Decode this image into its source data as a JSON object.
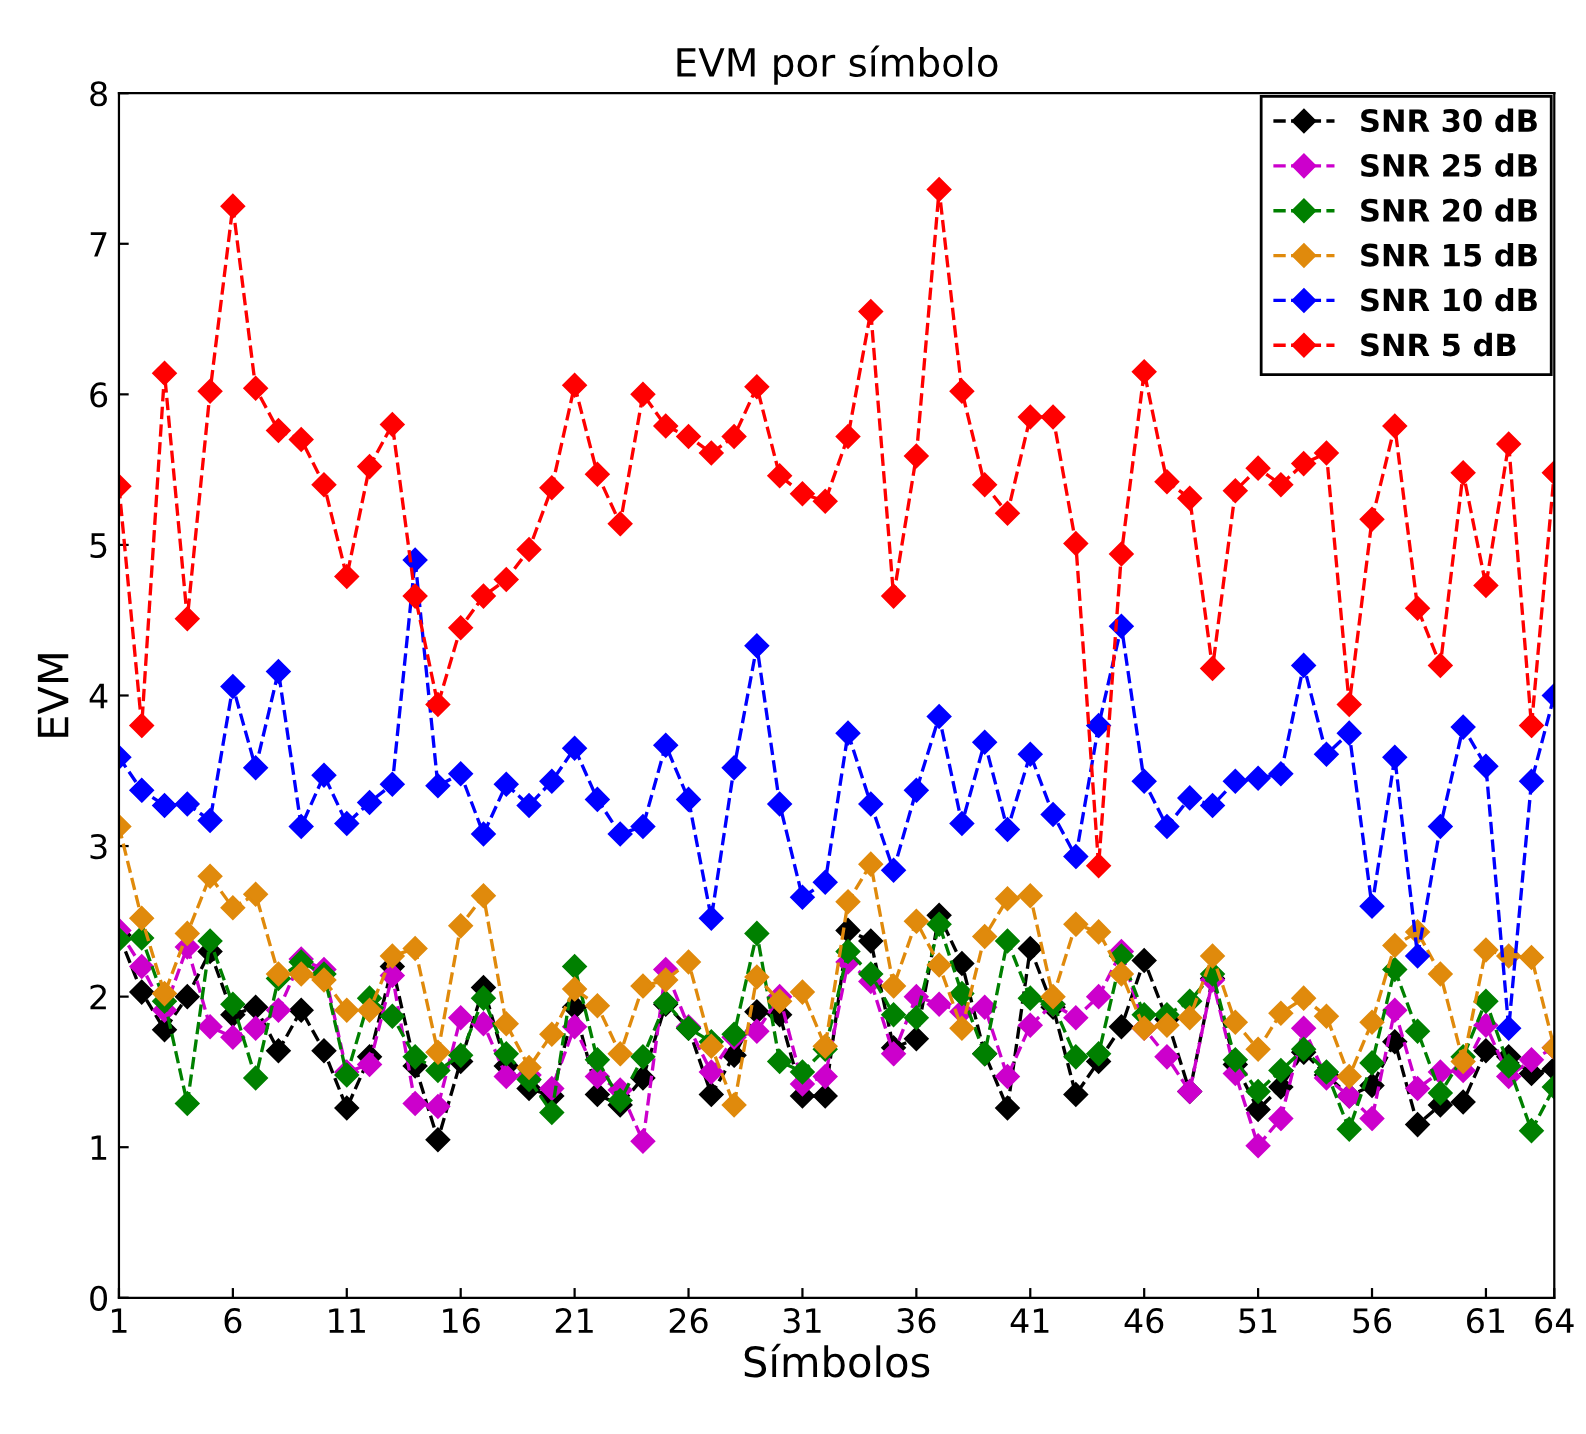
{
  "chart_data": {
    "type": "line",
    "title": "EVM por símbolo",
    "xlabel": "Símbolos",
    "ylabel": "EVM",
    "x": [
      1,
      2,
      3,
      4,
      5,
      6,
      7,
      8,
      9,
      10,
      11,
      12,
      13,
      14,
      15,
      16,
      17,
      18,
      19,
      20,
      21,
      22,
      23,
      24,
      25,
      26,
      27,
      28,
      29,
      30,
      31,
      32,
      33,
      34,
      35,
      36,
      37,
      38,
      39,
      40,
      41,
      42,
      43,
      44,
      45,
      46,
      47,
      48,
      49,
      50,
      51,
      52,
      53,
      54,
      55,
      56,
      57,
      58,
      59,
      60,
      61,
      62,
      63,
      64
    ],
    "xlim": [
      1,
      64
    ],
    "xticks": [
      1,
      6,
      11,
      16,
      21,
      26,
      31,
      36,
      41,
      46,
      51,
      56,
      61,
      64
    ],
    "ylim": [
      0,
      8
    ],
    "yticks": [
      0,
      1,
      2,
      3,
      4,
      5,
      6,
      7,
      8
    ],
    "grid": false,
    "legend": "top right",
    "marker": "diamond",
    "line_style": "dashed",
    "series": [
      {
        "name": "SNR 30 dB",
        "color": "#000000",
        "values": [
          2.41,
          2.03,
          1.78,
          2.0,
          2.3,
          1.88,
          1.93,
          1.64,
          1.91,
          1.64,
          1.26,
          1.6,
          2.2,
          1.54,
          1.05,
          1.57,
          2.06,
          1.54,
          1.39,
          1.34,
          1.93,
          1.35,
          1.28,
          1.46,
          1.95,
          1.79,
          1.35,
          1.61,
          1.9,
          1.88,
          1.34,
          1.34,
          2.44,
          2.37,
          1.66,
          1.72,
          2.54,
          2.22,
          1.62,
          1.26,
          2.32,
          1.93,
          1.35,
          1.57,
          1.8,
          2.24,
          1.85,
          1.37,
          2.12,
          1.55,
          1.25,
          1.4,
          1.63,
          1.48,
          1.34,
          1.41,
          1.7,
          1.15,
          1.28,
          1.3,
          1.64,
          1.6,
          1.49,
          1.52
        ]
      },
      {
        "name": "SNR 25 dB",
        "color": "#cc00cc",
        "values": [
          2.44,
          2.2,
          1.91,
          2.33,
          1.8,
          1.73,
          1.79,
          1.91,
          2.25,
          2.18,
          1.5,
          1.55,
          2.14,
          1.29,
          1.27,
          1.86,
          1.82,
          1.47,
          1.48,
          1.39,
          1.8,
          1.47,
          1.38,
          1.04,
          2.18,
          1.8,
          1.5,
          1.73,
          1.77,
          2.0,
          1.42,
          1.47,
          2.23,
          2.1,
          1.62,
          2.0,
          1.95,
          1.9,
          1.93,
          1.47,
          1.81,
          1.95,
          1.86,
          2.0,
          2.3,
          1.79,
          1.6,
          1.37,
          2.11,
          1.49,
          1.01,
          1.19,
          1.79,
          1.46,
          1.34,
          1.19,
          1.91,
          1.39,
          1.5,
          1.51,
          1.81,
          1.47,
          1.58,
          1.66
        ]
      },
      {
        "name": "SNR 20 dB",
        "color": "#008000",
        "values": [
          2.38,
          2.39,
          1.97,
          1.29,
          2.37,
          1.95,
          1.46,
          2.12,
          2.23,
          2.15,
          1.48,
          1.99,
          1.87,
          1.6,
          1.51,
          1.61,
          1.99,
          1.62,
          1.45,
          1.23,
          2.2,
          1.58,
          1.31,
          1.6,
          1.96,
          1.79,
          1.7,
          1.75,
          2.42,
          1.57,
          1.5,
          1.65,
          2.3,
          2.15,
          1.88,
          1.86,
          2.48,
          2.02,
          1.62,
          2.37,
          1.99,
          1.95,
          1.6,
          1.62,
          2.27,
          1.88,
          1.88,
          1.97,
          2.15,
          1.58,
          1.37,
          1.51,
          1.65,
          1.5,
          1.12,
          1.56,
          2.18,
          1.77,
          1.36,
          1.6,
          1.97,
          1.54,
          1.11,
          1.4
        ]
      },
      {
        "name": "SNR 15 dB",
        "color": "#e08a0c",
        "values": [
          3.13,
          2.52,
          2.02,
          2.42,
          2.8,
          2.59,
          2.68,
          2.15,
          2.15,
          2.11,
          1.91,
          1.91,
          2.27,
          2.32,
          1.63,
          2.47,
          2.67,
          1.82,
          1.53,
          1.75,
          2.05,
          1.94,
          1.62,
          2.07,
          2.11,
          2.23,
          1.67,
          1.28,
          2.13,
          1.97,
          2.03,
          1.67,
          2.63,
          2.88,
          2.07,
          2.5,
          2.21,
          1.79,
          2.4,
          2.65,
          2.67,
          2.0,
          2.48,
          2.43,
          2.15,
          1.79,
          1.81,
          1.86,
          2.27,
          1.83,
          1.65,
          1.89,
          1.99,
          1.87,
          1.47,
          1.83,
          2.34,
          2.43,
          2.15,
          1.57,
          2.31,
          2.27,
          2.26,
          1.66
        ]
      },
      {
        "name": "SNR 10 dB",
        "color": "#0000ff",
        "values": [
          3.59,
          3.37,
          3.27,
          3.28,
          3.17,
          4.06,
          3.52,
          4.16,
          3.13,
          3.47,
          3.15,
          3.29,
          3.41,
          4.9,
          3.4,
          3.48,
          3.08,
          3.41,
          3.27,
          3.43,
          3.65,
          3.31,
          3.08,
          3.13,
          3.67,
          3.31,
          2.52,
          3.52,
          4.33,
          3.28,
          2.66,
          2.76,
          3.75,
          3.28,
          2.84,
          3.37,
          3.86,
          3.15,
          3.69,
          3.11,
          3.61,
          3.21,
          2.93,
          3.8,
          4.46,
          3.43,
          3.13,
          3.32,
          3.27,
          3.43,
          3.45,
          3.48,
          4.2,
          3.61,
          3.75,
          2.6,
          3.59,
          2.27,
          3.13,
          3.79,
          3.53,
          1.79,
          3.43,
          4.0
        ]
      },
      {
        "name": "SNR 5 dB",
        "color": "#ff0000",
        "values": [
          5.39,
          3.8,
          6.14,
          4.51,
          6.02,
          7.25,
          6.04,
          5.76,
          5.7,
          5.4,
          4.79,
          5.52,
          5.8,
          4.66,
          3.94,
          4.45,
          4.66,
          4.77,
          4.97,
          5.38,
          6.06,
          5.47,
          5.14,
          6.0,
          5.79,
          5.72,
          5.61,
          5.72,
          6.05,
          5.46,
          5.34,
          5.29,
          5.72,
          6.55,
          4.66,
          5.59,
          7.36,
          6.02,
          5.4,
          5.21,
          5.85,
          5.85,
          5.01,
          2.87,
          4.94,
          6.15,
          5.42,
          5.31,
          4.18,
          5.36,
          5.51,
          5.4,
          5.54,
          5.61,
          3.94,
          5.17,
          5.79,
          4.58,
          4.2,
          5.48,
          4.73,
          5.67,
          3.8,
          5.48
        ]
      }
    ]
  }
}
